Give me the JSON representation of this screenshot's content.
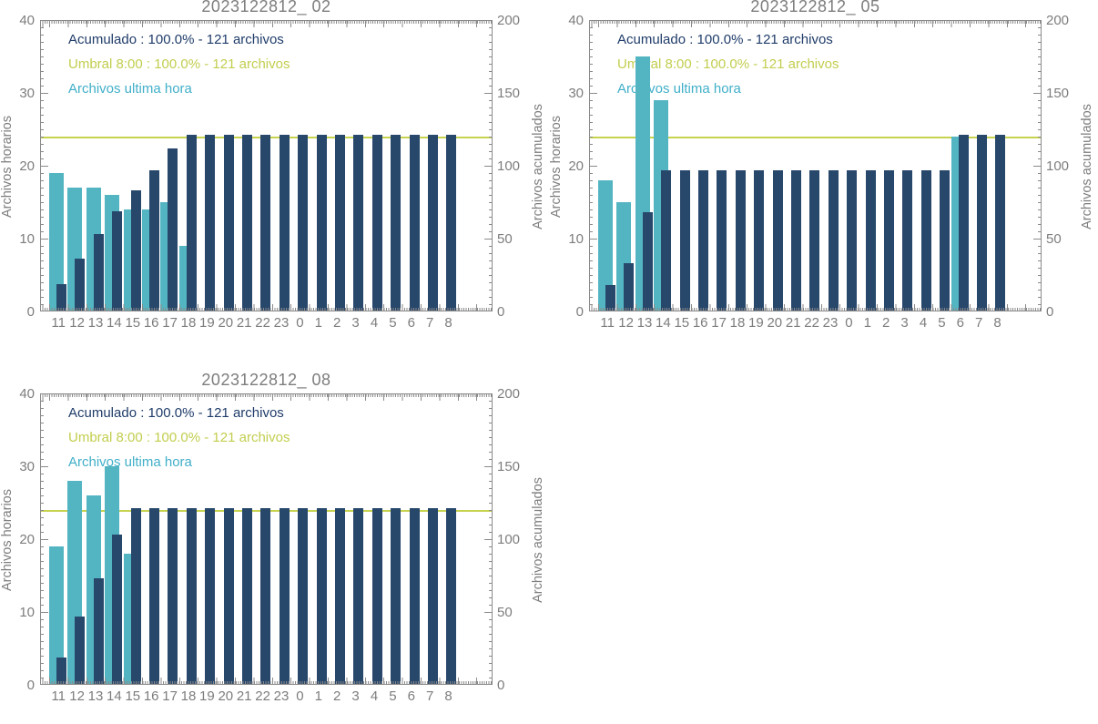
{
  "colors": {
    "teal": "#54B5C2",
    "navy": "#27476B",
    "umbral": "#C7D24F",
    "legend_navy": "#1F3C69",
    "legend_umbral": "#C2CE4E",
    "legend_teal": "#41AFC9",
    "axis_gray": "#8A8A8A",
    "gray_text": "#7D7D7D"
  },
  "axes": {
    "left_label": "Archivos horarios",
    "right_label": "Archivos acumulados",
    "left_ticks": [
      0,
      10,
      20,
      30,
      40
    ],
    "right_ticks": [
      0,
      50,
      100,
      150,
      200
    ],
    "left_max": 40,
    "right_max": 200
  },
  "legend": {
    "acumulado": "Acumulado : 100.0% - 121 archivos",
    "umbral": "Umbral 8:00 : 100.0% - 121 archivos",
    "ultima": "Archivos ultima hora"
  },
  "hours": [
    "11",
    "12",
    "13",
    "14",
    "15",
    "16",
    "17",
    "18",
    "19",
    "20",
    "21",
    "22",
    "23",
    "0",
    "1",
    "2",
    "3",
    "4",
    "5",
    "6",
    "7",
    "8"
  ],
  "umbral_value": 121,
  "chart_data": [
    {
      "type": "bar",
      "title": "2023122812_ 02",
      "categories": [
        "11",
        "12",
        "13",
        "14",
        "15",
        "16",
        "17",
        "18",
        "19",
        "20",
        "21",
        "22",
        "23",
        "0",
        "1",
        "2",
        "3",
        "4",
        "5",
        "6",
        "7",
        "8"
      ],
      "series": [
        {
          "name": "Archivos ultima hora",
          "axis": "left",
          "values": [
            19,
            17,
            17,
            16,
            14,
            14,
            15,
            9,
            0,
            0,
            0,
            0,
            0,
            0,
            0,
            0,
            0,
            0,
            0,
            0,
            0,
            0
          ]
        },
        {
          "name": "Acumulado",
          "axis": "right",
          "values": [
            19,
            36,
            53,
            69,
            83,
            97,
            112,
            121,
            121,
            121,
            121,
            121,
            121,
            121,
            121,
            121,
            121,
            121,
            121,
            121,
            121,
            121
          ]
        },
        {
          "name": "Umbral 8:00",
          "type": "hline",
          "axis": "right",
          "value": 121
        }
      ],
      "ylim_left": [
        0,
        40
      ],
      "ylim_right": [
        0,
        200
      ],
      "xlabel": "",
      "ylabel_left": "Archivos horarios",
      "ylabel_right": "Archivos acumulados",
      "legend_position": "top-left",
      "grid": false
    },
    {
      "type": "bar",
      "title": "2023122812_ 05",
      "categories": [
        "11",
        "12",
        "13",
        "14",
        "15",
        "16",
        "17",
        "18",
        "19",
        "20",
        "21",
        "22",
        "23",
        "0",
        "1",
        "2",
        "3",
        "4",
        "5",
        "6",
        "7",
        "8"
      ],
      "series": [
        {
          "name": "Archivos ultima hora",
          "axis": "left",
          "values": [
            18,
            15,
            35,
            29,
            0,
            0,
            0,
            0,
            0,
            0,
            0,
            0,
            0,
            0,
            0,
            0,
            0,
            0,
            0,
            24,
            0,
            0
          ]
        },
        {
          "name": "Acumulado",
          "axis": "right",
          "values": [
            18,
            33,
            68,
            97,
            97,
            97,
            97,
            97,
            97,
            97,
            97,
            97,
            97,
            97,
            97,
            97,
            97,
            97,
            97,
            121,
            121,
            121
          ]
        },
        {
          "name": "Umbral 8:00",
          "type": "hline",
          "axis": "right",
          "value": 121
        }
      ],
      "ylim_left": [
        0,
        40
      ],
      "ylim_right": [
        0,
        200
      ],
      "xlabel": "",
      "ylabel_left": "Archivos horarios",
      "ylabel_right": "Archivos acumulados",
      "legend_position": "top-left",
      "grid": false
    },
    {
      "type": "bar",
      "title": "2023122812_ 08",
      "categories": [
        "11",
        "12",
        "13",
        "14",
        "15",
        "16",
        "17",
        "18",
        "19",
        "20",
        "21",
        "22",
        "23",
        "0",
        "1",
        "2",
        "3",
        "4",
        "5",
        "6",
        "7",
        "8"
      ],
      "series": [
        {
          "name": "Archivos ultima hora",
          "axis": "left",
          "values": [
            19,
            28,
            26,
            30,
            18,
            0,
            0,
            0,
            0,
            0,
            0,
            0,
            0,
            0,
            0,
            0,
            0,
            0,
            0,
            0,
            0,
            0
          ]
        },
        {
          "name": "Acumulado",
          "axis": "right",
          "values": [
            19,
            47,
            73,
            103,
            121,
            121,
            121,
            121,
            121,
            121,
            121,
            121,
            121,
            121,
            121,
            121,
            121,
            121,
            121,
            121,
            121,
            121
          ]
        },
        {
          "name": "Umbral 8:00",
          "type": "hline",
          "axis": "right",
          "value": 121
        }
      ],
      "ylim_left": [
        0,
        40
      ],
      "ylim_right": [
        0,
        200
      ],
      "xlabel": "",
      "ylabel_left": "Archivos horarios",
      "ylabel_right": "Archivos acumulados",
      "legend_position": "top-left",
      "grid": false
    }
  ]
}
